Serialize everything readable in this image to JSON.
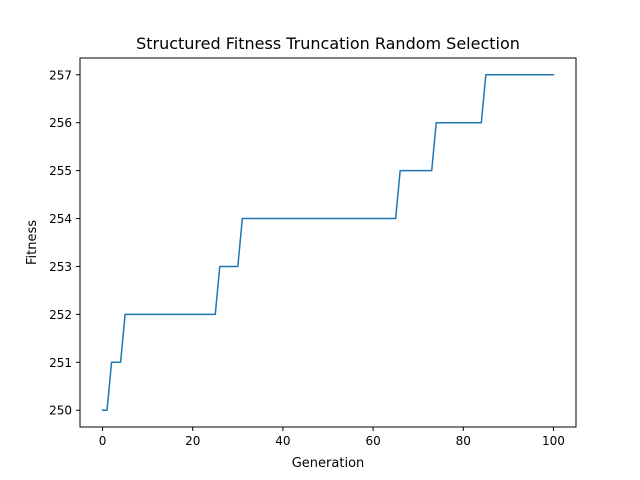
{
  "chart_data": {
    "type": "line",
    "title": "Structured Fitness Truncation Random Selection",
    "xlabel": "Generation",
    "ylabel": "Fitness",
    "xlim": [
      -5,
      105
    ],
    "ylim": [
      249.65,
      257.35
    ],
    "xticks": [
      0,
      20,
      40,
      60,
      80,
      100
    ],
    "yticks": [
      250,
      251,
      252,
      253,
      254,
      255,
      256,
      257
    ],
    "grid": false,
    "series": [
      {
        "color": "#1f77b4",
        "x": [
          0,
          1,
          2,
          3,
          4,
          5,
          6,
          7,
          8,
          9,
          10,
          11,
          12,
          13,
          14,
          15,
          16,
          17,
          18,
          19,
          20,
          21,
          22,
          23,
          24,
          25,
          26,
          27,
          28,
          29,
          30,
          31,
          32,
          33,
          34,
          35,
          36,
          37,
          38,
          39,
          40,
          41,
          42,
          43,
          44,
          45,
          46,
          47,
          48,
          49,
          50,
          51,
          52,
          53,
          54,
          55,
          56,
          57,
          58,
          59,
          60,
          61,
          62,
          63,
          64,
          65,
          66,
          67,
          68,
          69,
          70,
          71,
          72,
          73,
          74,
          75,
          76,
          77,
          78,
          79,
          80,
          81,
          82,
          83,
          84,
          85,
          86,
          87,
          88,
          89,
          90,
          91,
          92,
          93,
          94,
          95,
          96,
          97,
          98,
          99,
          100
        ],
        "y": [
          250,
          250,
          251,
          251,
          251,
          252,
          252,
          252,
          252,
          252,
          252,
          252,
          252,
          252,
          252,
          252,
          252,
          252,
          252,
          252,
          252,
          252,
          252,
          252,
          252,
          252,
          253,
          253,
          253,
          253,
          253,
          254,
          254,
          254,
          254,
          254,
          254,
          254,
          254,
          254,
          254,
          254,
          254,
          254,
          254,
          254,
          254,
          254,
          254,
          254,
          254,
          254,
          254,
          254,
          254,
          254,
          254,
          254,
          254,
          254,
          254,
          254,
          254,
          254,
          254,
          254,
          255,
          255,
          255,
          255,
          255,
          255,
          255,
          255,
          256,
          256,
          256,
          256,
          256,
          256,
          256,
          256,
          256,
          256,
          256,
          257,
          257,
          257,
          257,
          257,
          257,
          257,
          257,
          257,
          257,
          257,
          257,
          257,
          257,
          257,
          257
        ]
      }
    ]
  }
}
